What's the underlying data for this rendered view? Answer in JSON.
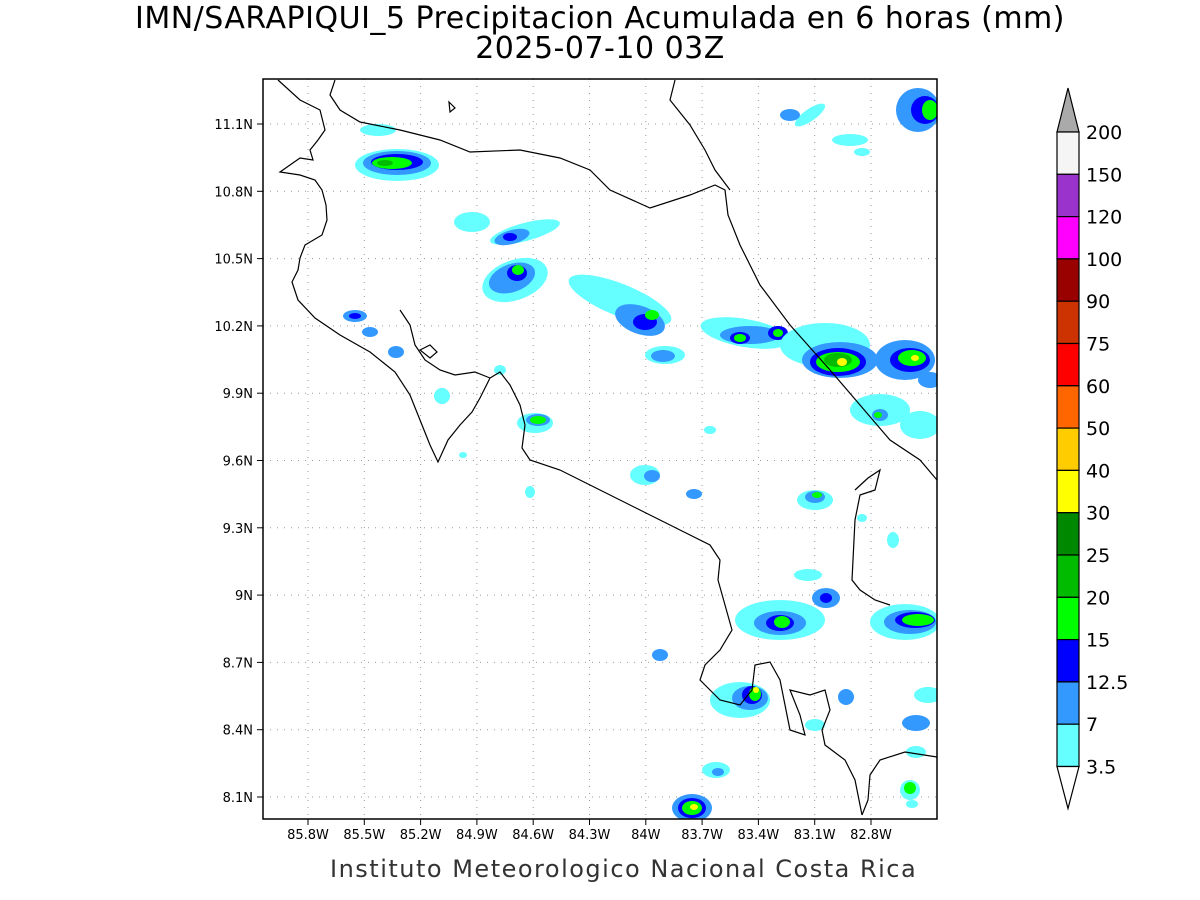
{
  "title_line1": "IMN/SARAPIQUI_5 Precipitacion Acumulada en 6 horas (mm)",
  "title_line2": "2025-07-10 03Z",
  "footer": "Instituto Meteorologico Nacional Costa Rica",
  "map": {
    "lon_range": [
      -86.1,
      -83.1
    ],
    "lat_range": [
      8.0,
      11.3
    ],
    "x_ticks": [
      "85.8W",
      "85.5W",
      "85.2W",
      "84.9W",
      "84.6W",
      "84.3W",
      "84W",
      "83.7W",
      "83.4W",
      "83.1W",
      "82.8W"
    ],
    "y_ticks": [
      "11.1N",
      "10.8N",
      "10.5N",
      "10.2N",
      "9.9N",
      "9.6N",
      "9.3N",
      "9N",
      "8.7N",
      "8.4N",
      "8.1N"
    ],
    "grid": true
  },
  "colorbar": {
    "levels": [
      "200",
      "150",
      "120",
      "100",
      "90",
      "75",
      "60",
      "50",
      "40",
      "30",
      "25",
      "20",
      "15",
      "12.5",
      "7",
      "3.5"
    ],
    "colors": [
      "#aaaaaa",
      "#f5f5f5",
      "#9933cc",
      "#ff00ff",
      "#990000",
      "#cc3300",
      "#ff0000",
      "#ff6600",
      "#ffcc00",
      "#ffff00",
      "#008800",
      "#00bb00",
      "#00ff00",
      "#0000ff",
      "#3399ff",
      "#66ffff"
    ],
    "below_color": "#ffffff"
  }
}
